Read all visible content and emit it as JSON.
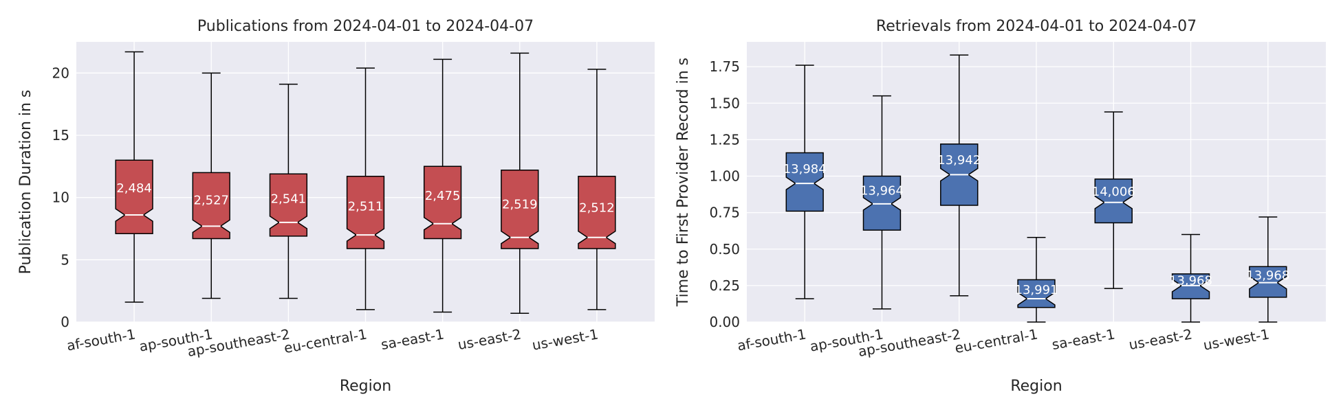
{
  "chart_data": [
    {
      "type": "boxplot",
      "title": "Publications from 2024-04-01 to 2024-04-07",
      "xlabel": "Region",
      "ylabel": "Publication Duration in s",
      "ylim": [
        0,
        22.5
      ],
      "yticks": [
        0,
        5,
        10,
        15,
        20
      ],
      "ytick_labels": [
        "0",
        "5",
        "10",
        "15",
        "20"
      ],
      "notched": true,
      "color": "#c44e52",
      "grid": true,
      "categories": [
        "af-south-1",
        "ap-south-1",
        "ap-southeast-2",
        "eu-central-1",
        "sa-east-1",
        "us-east-2",
        "us-west-1"
      ],
      "boxes": [
        {
          "whislo": 1.6,
          "q1": 7.1,
          "med": 8.6,
          "q3": 13.0,
          "whishi": 21.7,
          "count": "2,484"
        },
        {
          "whislo": 1.9,
          "q1": 6.7,
          "med": 7.7,
          "q3": 12.0,
          "whishi": 20.0,
          "count": "2,527"
        },
        {
          "whislo": 1.9,
          "q1": 6.9,
          "med": 8.0,
          "q3": 11.9,
          "whishi": 19.1,
          "count": "2,541"
        },
        {
          "whislo": 1.0,
          "q1": 5.9,
          "med": 7.0,
          "q3": 11.7,
          "whishi": 20.4,
          "count": "2,511"
        },
        {
          "whislo": 0.8,
          "q1": 6.7,
          "med": 7.9,
          "q3": 12.5,
          "whishi": 21.1,
          "count": "2,475"
        },
        {
          "whislo": 0.7,
          "q1": 5.9,
          "med": 6.8,
          "q3": 12.2,
          "whishi": 21.6,
          "count": "2,519"
        },
        {
          "whislo": 1.0,
          "q1": 5.9,
          "med": 6.8,
          "q3": 11.7,
          "whishi": 20.3,
          "count": "2,512"
        }
      ]
    },
    {
      "type": "boxplot",
      "title": "Retrievals from 2024-04-01 to 2024-04-07",
      "xlabel": "Region",
      "ylabel": "Time to First Provider Record in s",
      "ylim": [
        0,
        1.92
      ],
      "yticks": [
        0,
        0.25,
        0.5,
        0.75,
        1.0,
        1.25,
        1.5,
        1.75
      ],
      "ytick_labels": [
        "0.00",
        "0.25",
        "0.50",
        "0.75",
        "1.00",
        "1.25",
        "1.50",
        "1.75"
      ],
      "notched": true,
      "color": "#4c72b0",
      "grid": true,
      "categories": [
        "af-south-1",
        "ap-south-1",
        "ap-southeast-2",
        "eu-central-1",
        "sa-east-1",
        "us-east-2",
        "us-west-1"
      ],
      "boxes": [
        {
          "whislo": 0.16,
          "q1": 0.76,
          "med": 0.95,
          "q3": 1.16,
          "whishi": 1.76,
          "count": "13,984"
        },
        {
          "whislo": 0.09,
          "q1": 0.63,
          "med": 0.81,
          "q3": 1.0,
          "whishi": 1.55,
          "count": "13,964"
        },
        {
          "whislo": 0.18,
          "q1": 0.8,
          "med": 1.01,
          "q3": 1.22,
          "whishi": 1.83,
          "count": "13,942"
        },
        {
          "whislo": 0.0,
          "q1": 0.1,
          "med": 0.16,
          "q3": 0.29,
          "whishi": 0.58,
          "count": "13,991"
        },
        {
          "whislo": 0.23,
          "q1": 0.68,
          "med": 0.82,
          "q3": 0.98,
          "whishi": 1.44,
          "count": "14,006"
        },
        {
          "whislo": 0.0,
          "q1": 0.16,
          "med": 0.25,
          "q3": 0.33,
          "whishi": 0.6,
          "count": "13,968"
        },
        {
          "whislo": 0.0,
          "q1": 0.17,
          "med": 0.27,
          "q3": 0.38,
          "whishi": 0.72,
          "count": "13,968"
        }
      ]
    }
  ],
  "colors": {
    "plot_bg": "#eaeaf2",
    "grid": "#ffffff",
    "median": "#ffffff",
    "outline": "#000000"
  }
}
